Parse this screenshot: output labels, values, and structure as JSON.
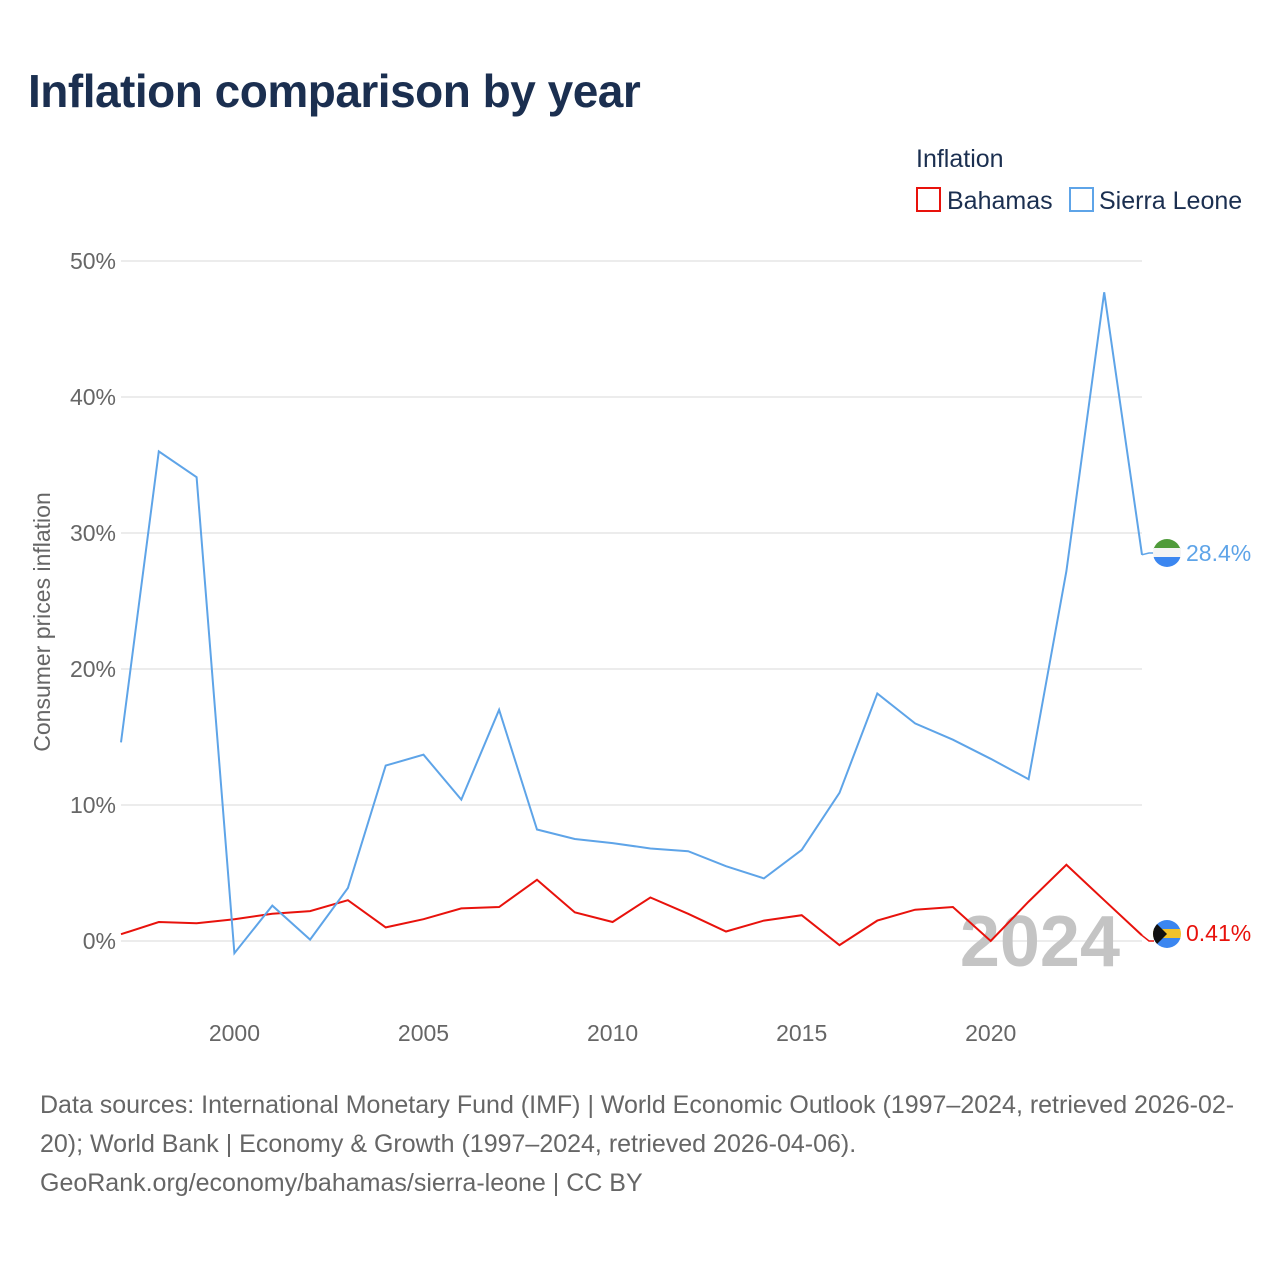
{
  "title": "Inflation comparison by year",
  "legend": {
    "title": "Inflation",
    "items": [
      {
        "name": "Bahamas",
        "color": "#e8120c"
      },
      {
        "name": "Sierra Leone",
        "color": "#5ea4e8"
      }
    ]
  },
  "year_label": "2024",
  "footer": {
    "sources": "Data sources: International Monetary Fund (IMF) | World Economic Outlook (1997–2024, retrieved 2026-02-20); World Bank | Economy & Growth (1997–2024, retrieved 2026-04-06).",
    "credit": "GeoRank.org/economy/bahamas/sierra-leone | CC BY"
  },
  "chart_data": {
    "type": "line",
    "title": "Inflation comparison by year",
    "xlabel": "",
    "ylabel": "Consumer prices inflation",
    "xlim": [
      1997,
      2024
    ],
    "ylim": [
      -5,
      52
    ],
    "x_ticks": [
      2000,
      2005,
      2010,
      2015,
      2020
    ],
    "x_tick_labels": [
      "2000",
      "2005",
      "2010",
      "2015",
      "2020"
    ],
    "y_ticks": [
      0,
      10,
      20,
      30,
      40,
      50
    ],
    "y_tick_labels": [
      "0%",
      "10%",
      "20%",
      "30%",
      "40%",
      "50%"
    ],
    "grid": true,
    "legend_position": "top-right",
    "x": [
      1997,
      1998,
      1999,
      2000,
      2001,
      2002,
      2003,
      2004,
      2005,
      2006,
      2007,
      2008,
      2009,
      2010,
      2011,
      2012,
      2013,
      2014,
      2015,
      2016,
      2017,
      2018,
      2019,
      2020,
      2021,
      2022,
      2023,
      2024
    ],
    "series": [
      {
        "name": "Bahamas",
        "color": "#e8120c",
        "end_label": "0.41%",
        "values": [
          0.5,
          1.4,
          1.3,
          1.6,
          2.0,
          2.2,
          3.0,
          1.0,
          1.6,
          2.4,
          2.5,
          4.5,
          2.1,
          1.4,
          3.2,
          2.0,
          0.7,
          1.5,
          1.9,
          -0.3,
          1.5,
          2.3,
          2.5,
          0.0,
          2.9,
          5.6,
          3.0,
          0.41
        ]
      },
      {
        "name": "Sierra Leone",
        "color": "#5ea4e8",
        "end_label": "28.4%",
        "values": [
          14.6,
          36.0,
          34.1,
          -0.9,
          2.6,
          0.1,
          3.9,
          12.9,
          13.7,
          10.4,
          17.0,
          8.2,
          7.5,
          7.2,
          6.8,
          6.6,
          5.5,
          4.6,
          6.7,
          10.9,
          18.2,
          16.0,
          14.8,
          13.4,
          11.9,
          27.2,
          47.7,
          28.4
        ]
      }
    ]
  }
}
